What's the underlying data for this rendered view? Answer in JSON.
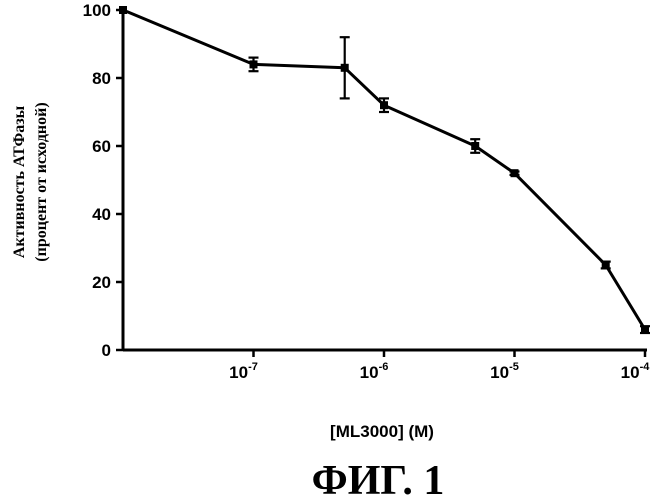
{
  "chart_data": {
    "type": "line",
    "x_scale": "log",
    "xlabel": "[ML3000] (M)",
    "ylabel_lines": [
      "Активность АТФазы",
      "(процент от исходной)"
    ],
    "ylim": [
      0,
      100
    ],
    "yticks": [
      0,
      20,
      40,
      60,
      80,
      100
    ],
    "xticks": [
      {
        "value": 1e-07,
        "base": "10",
        "exp": "-7"
      },
      {
        "value": 1e-06,
        "base": "10",
        "exp": "-6"
      },
      {
        "value": 1e-05,
        "base": "10",
        "exp": "-5"
      },
      {
        "value": 0.0001,
        "base": "10",
        "exp": "-4"
      }
    ],
    "grid": false,
    "series": [
      {
        "color": "#000000",
        "points": [
          {
            "x": 1e-08,
            "y": 100,
            "err": 0
          },
          {
            "x": 1e-07,
            "y": 84,
            "err": 2
          },
          {
            "x": 5e-07,
            "y": 83,
            "err": 9
          },
          {
            "x": 1e-06,
            "y": 72,
            "err": 2
          },
          {
            "x": 5e-06,
            "y": 60,
            "err": 2
          },
          {
            "x": 1e-05,
            "y": 52,
            "err": 0.5
          },
          {
            "x": 5e-05,
            "y": 25,
            "err": 1
          },
          {
            "x": 0.0001,
            "y": 6,
            "err": 1
          }
        ]
      }
    ]
  },
  "caption": "ФИГ. 1"
}
